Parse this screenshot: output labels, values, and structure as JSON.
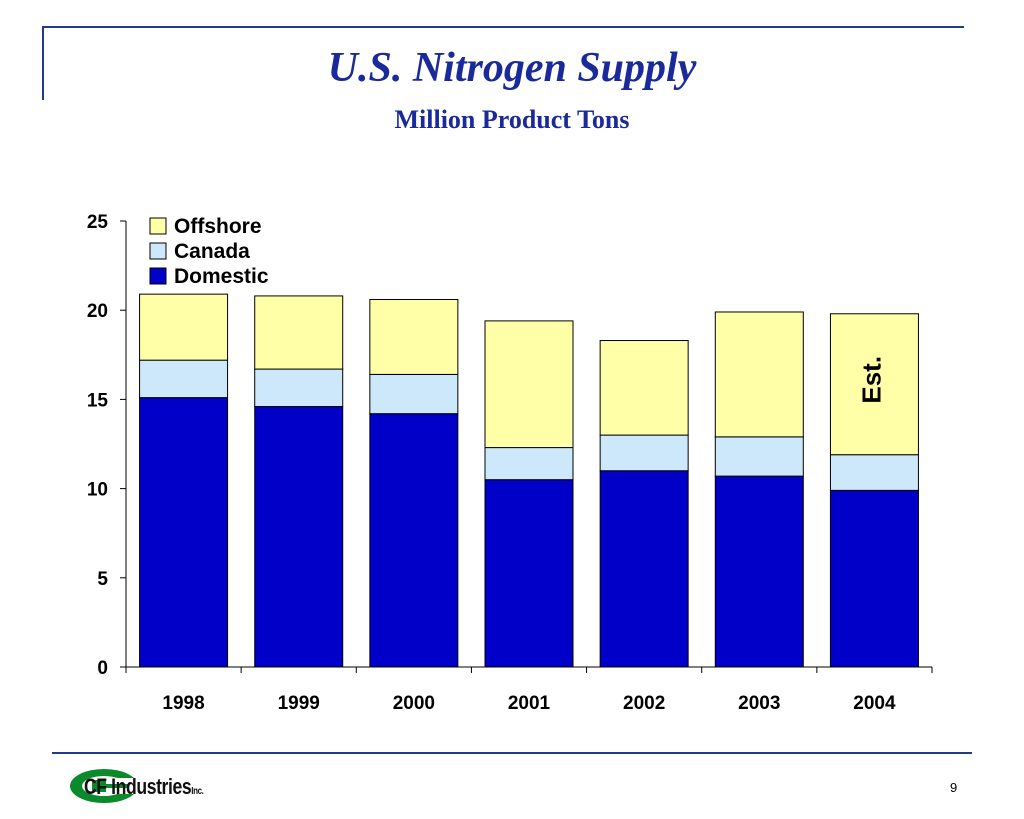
{
  "slide": {
    "title": "U.S. Nitrogen Supply",
    "subtitle": "Million Product Tons",
    "page_number": "9",
    "logo_text": "CF Industries",
    "logo_suffix": "Inc."
  },
  "colors": {
    "frame": "#1f3a8a",
    "domestic": "#0000c8",
    "canada": "#cce8fa",
    "offshore": "#ffffa8"
  },
  "chart_data": {
    "type": "bar",
    "stacked": true,
    "categories": [
      "1998",
      "1999",
      "2000",
      "2001",
      "2002",
      "2003",
      "2004"
    ],
    "series": [
      {
        "name": "Domestic",
        "color": "#0000c8",
        "values": [
          15.1,
          14.6,
          14.2,
          10.5,
          11.0,
          10.7,
          9.9
        ]
      },
      {
        "name": "Canada",
        "color": "#cce8fa",
        "values": [
          2.1,
          2.1,
          2.2,
          1.8,
          2.0,
          2.2,
          2.0
        ]
      },
      {
        "name": "Offshore",
        "color": "#ffffa8",
        "values": [
          3.7,
          4.1,
          4.2,
          7.1,
          5.3,
          7.0,
          7.9
        ]
      }
    ],
    "ylim": [
      0,
      25
    ],
    "yticks": [
      0,
      5,
      10,
      15,
      20,
      25
    ],
    "legend_order": [
      "Offshore",
      "Canada",
      "Domestic"
    ],
    "legend_position": "top-left",
    "annotation": {
      "text": "Est.",
      "category": "2004"
    },
    "grid": false
  }
}
